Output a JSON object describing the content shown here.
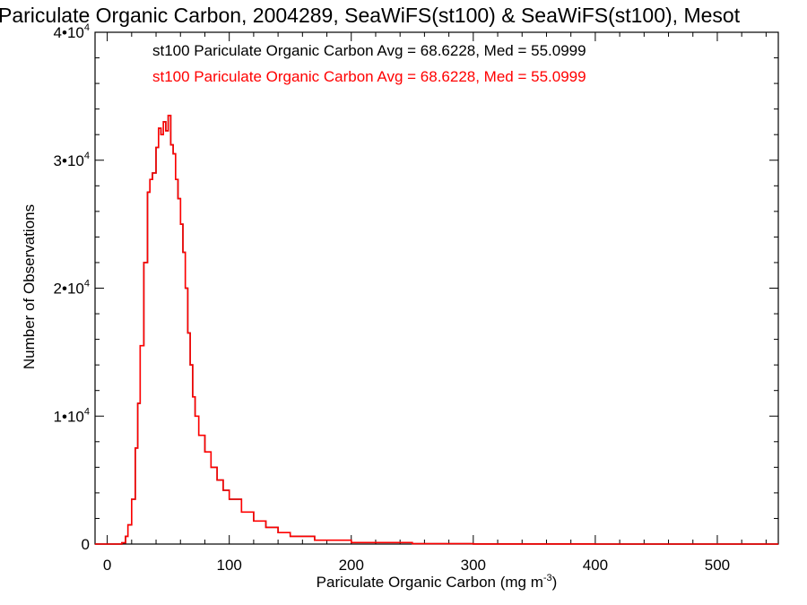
{
  "chart_data": {
    "type": "line",
    "title": "Pariculate Organic Carbon, 2004289, SeaWiFS(st100) & SeaWiFS(st100), Mesot",
    "xlabel": "Pariculate Organic Carbon (mg m",
    "xlabel_sup": "-3",
    "xlabel_end": ")",
    "ylabel": "Number of Observations",
    "xlim": [
      -10,
      550
    ],
    "ylim": [
      0,
      40000
    ],
    "x_ticks": [
      0,
      100,
      200,
      300,
      400,
      500
    ],
    "x_tick_labels": [
      "0",
      "100",
      "200",
      "300",
      "400",
      "500"
    ],
    "y_ticks": [
      0,
      10000,
      20000,
      30000,
      40000
    ],
    "y_tick_labels": [
      {
        "base": "0",
        "exp": ""
      },
      {
        "base": "1•10",
        "exp": "4"
      },
      {
        "base": "2•10",
        "exp": "4"
      },
      {
        "base": "3•10",
        "exp": "4"
      },
      {
        "base": "4•10",
        "exp": "4"
      }
    ],
    "grid": false,
    "series": [
      {
        "name": "st100 Pariculate Organic Carbon Avg = 68.6228, Med = 55.0999",
        "color": "#000000",
        "x": [
          -10,
          5,
          12,
          15,
          17,
          20,
          23,
          25,
          27,
          30,
          33,
          35,
          37,
          40,
          42,
          44,
          46,
          48,
          50,
          52,
          54,
          56,
          58,
          60,
          62,
          64,
          66,
          68,
          70,
          72,
          75,
          80,
          85,
          90,
          95,
          100,
          110,
          120,
          130,
          140,
          150,
          170,
          200,
          250,
          300,
          400,
          550
        ],
        "y": [
          0,
          0,
          100,
          600,
          1500,
          3500,
          7500,
          11000,
          15500,
          22000,
          27500,
          28500,
          29000,
          31000,
          32500,
          32000,
          33000,
          32300,
          33500,
          31200,
          30500,
          28500,
          27000,
          25000,
          22800,
          20000,
          16500,
          14000,
          11500,
          10000,
          8500,
          7200,
          6000,
          5000,
          4200,
          3500,
          2500,
          1800,
          1300,
          900,
          600,
          300,
          120,
          30,
          10,
          3,
          0
        ]
      },
      {
        "name": "st100 Pariculate Organic Carbon Avg = 68.6228, Med = 55.0999",
        "color": "#ff0000",
        "x": [
          -10,
          5,
          12,
          15,
          17,
          20,
          23,
          25,
          27,
          30,
          33,
          35,
          37,
          40,
          42,
          44,
          46,
          48,
          50,
          52,
          54,
          56,
          58,
          60,
          62,
          64,
          66,
          68,
          70,
          72,
          75,
          80,
          85,
          90,
          95,
          100,
          110,
          120,
          130,
          140,
          150,
          170,
          200,
          250,
          300,
          400,
          550
        ],
        "y": [
          0,
          0,
          100,
          600,
          1500,
          3500,
          7500,
          11000,
          15500,
          22000,
          27500,
          28500,
          29000,
          31000,
          32500,
          32000,
          33000,
          32300,
          33500,
          31200,
          30500,
          28500,
          27000,
          25000,
          22800,
          20000,
          16500,
          14000,
          11500,
          10000,
          8500,
          7200,
          6000,
          5000,
          4200,
          3500,
          2500,
          1800,
          1300,
          900,
          600,
          300,
          120,
          30,
          10,
          3,
          0
        ]
      }
    ],
    "legend_placement": "top-left"
  }
}
